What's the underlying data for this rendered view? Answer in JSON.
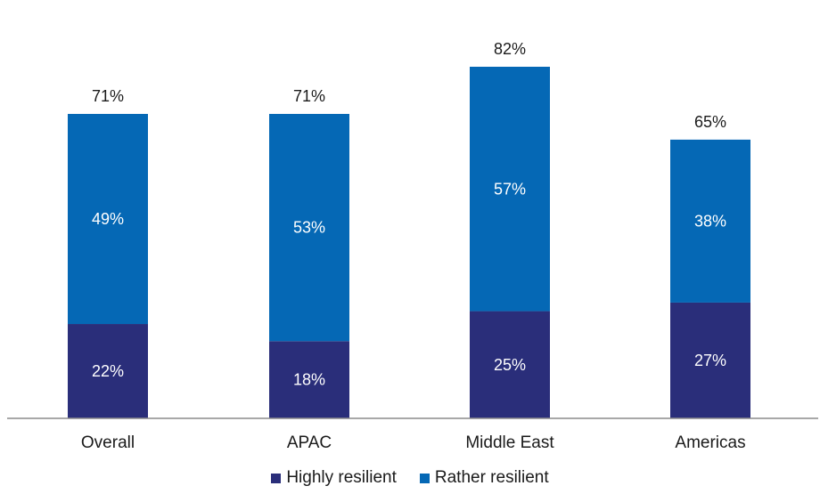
{
  "chart_data": {
    "type": "bar",
    "stacked": true,
    "categories": [
      "Overall",
      "APAC",
      "Middle East",
      "Americas"
    ],
    "series": [
      {
        "name": "Highly resilient",
        "values": [
          22,
          18,
          25,
          27
        ],
        "color": "#2a2e7a",
        "labels": [
          "22%",
          "18%",
          "25%",
          "27%"
        ]
      },
      {
        "name": "Rather resilient",
        "values": [
          49,
          53,
          57,
          38
        ],
        "color": "#0568b5",
        "labels": [
          "49%",
          "53%",
          "57%",
          "38%"
        ]
      }
    ],
    "totals": [
      71,
      71,
      82,
      65
    ],
    "total_labels": [
      "71%",
      "71%",
      "82%",
      "65%"
    ],
    "ylim": [
      0,
      82
    ],
    "grid": false,
    "legend_position": "bottom"
  }
}
